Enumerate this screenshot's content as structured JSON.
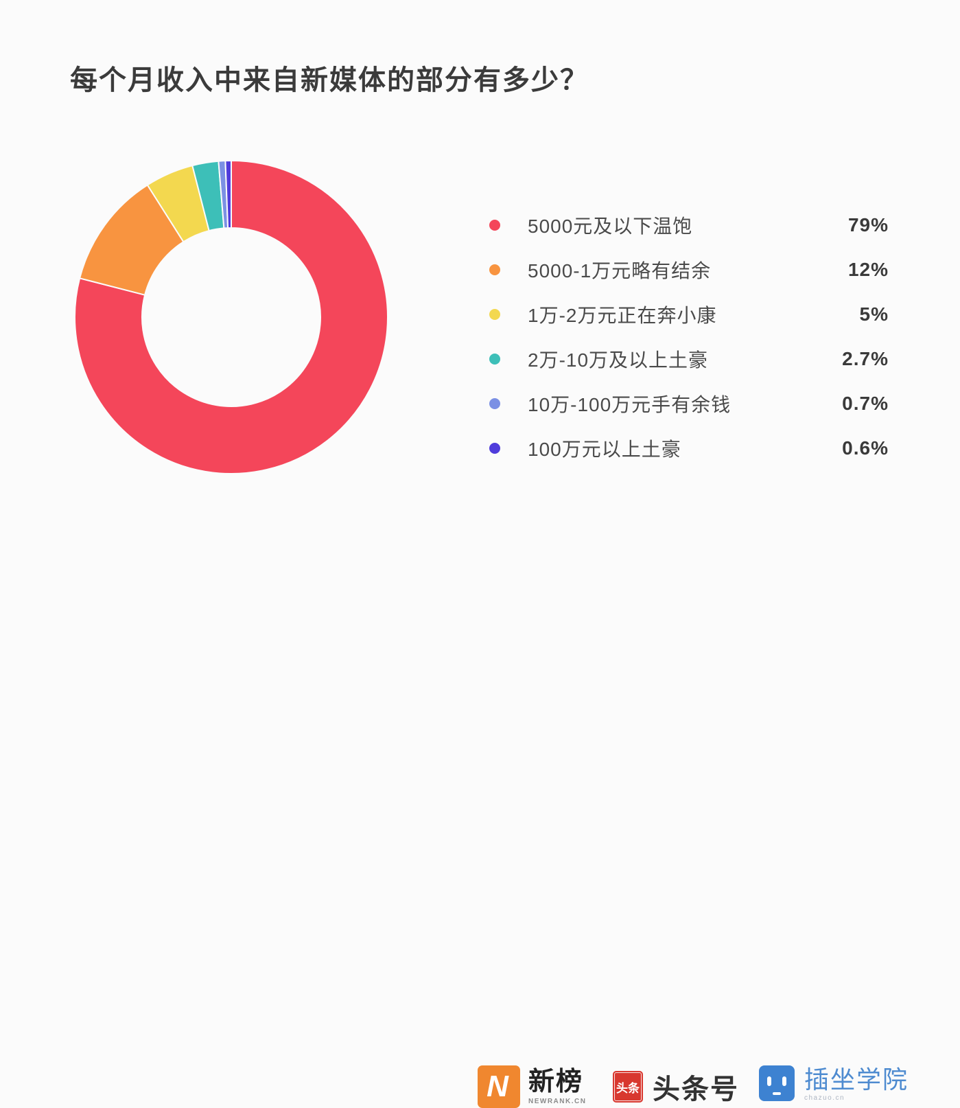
{
  "title": "每个月收入中来自新媒体的部分有多少？",
  "chart_data": {
    "type": "pie",
    "subtype": "donut",
    "title": "每个月收入中来自新媒体的部分有多少？",
    "start_angle_deg": 0,
    "direction": "clockwise",
    "legend_position": "right",
    "inner_radius_ratio": 0.57,
    "series": [
      {
        "label": "5000元及以下温饱",
        "value": 79,
        "display": "79%",
        "color": "#F4465A"
      },
      {
        "label": "5000-1万元略有结余",
        "value": 12,
        "display": "12%",
        "color": "#F89440"
      },
      {
        "label": "1万-2万元正在奔小康",
        "value": 5,
        "display": "5%",
        "color": "#F3D84F"
      },
      {
        "label": "2万-10万及以上土豪",
        "value": 2.7,
        "display": "2.7%",
        "color": "#3DBFB8"
      },
      {
        "label": "10万-100万元手有余钱",
        "value": 0.7,
        "display": "0.7%",
        "color": "#7B90E4"
      },
      {
        "label": "100万元以上土豪",
        "value": 0.6,
        "display": "0.6%",
        "color": "#4F3CDB"
      }
    ]
  },
  "footer": {
    "newrank": {
      "name": "新榜",
      "domain": "NEWRANK.CN",
      "monogram": "N",
      "color": "#F0872F"
    },
    "toutiao": {
      "seal": "头条",
      "name": "头条号",
      "color": "#D8382F"
    },
    "chazuo": {
      "name": "插坐学院",
      "domain": "chazuo.cn",
      "color": "#3D82D1"
    }
  },
  "background_color": "#FBFBFB"
}
